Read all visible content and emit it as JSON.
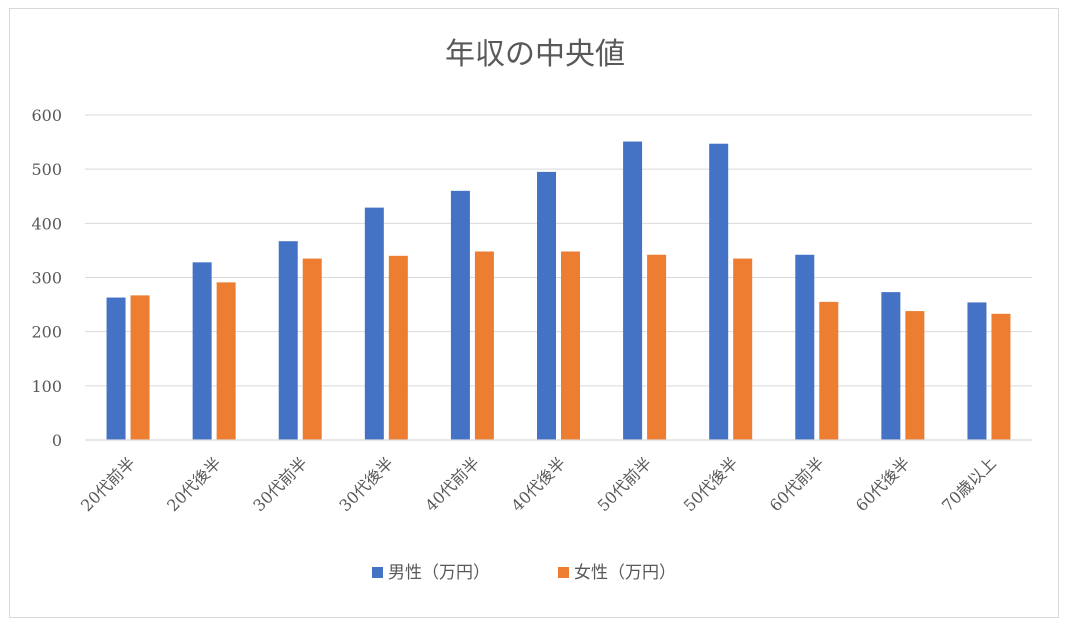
{
  "chart_data": {
    "type": "bar",
    "title": "年収の中央値",
    "categories": [
      "20代前半",
      "20代後半",
      "30代前半",
      "30代後半",
      "40代前半",
      "40代後半",
      "50代前半",
      "50代後半",
      "60代前半",
      "60代後半",
      "70歳以上"
    ],
    "series": [
      {
        "name": "男性（万円）",
        "color": "#4472c4",
        "values": [
          263,
          328,
          367,
          429,
          460,
          495,
          551,
          547,
          342,
          273,
          254
        ]
      },
      {
        "name": "女性（万円）",
        "color": "#ed7d31",
        "values": [
          267,
          291,
          335,
          340,
          348,
          348,
          342,
          335,
          255,
          238,
          233
        ]
      }
    ],
    "ylim": [
      0,
      600
    ],
    "yticks": [
      0,
      100,
      200,
      300,
      400,
      500,
      600
    ],
    "grid": true,
    "legend_position": "bottom"
  }
}
